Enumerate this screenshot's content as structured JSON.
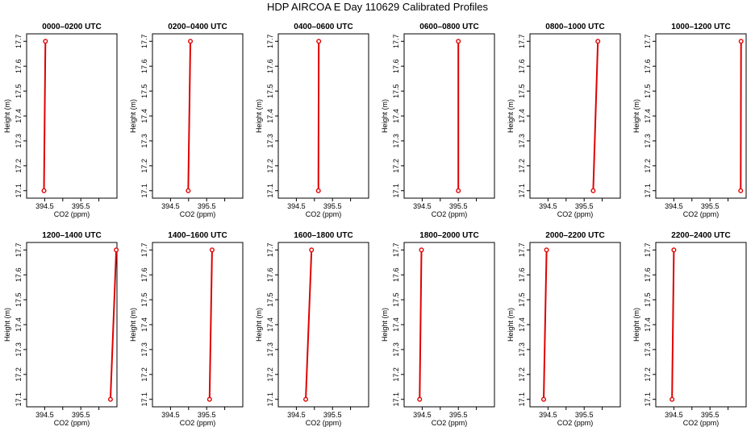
{
  "chart_data": {
    "type": "line",
    "title": "HDP AIRCOA E  Day 110629  Calibrated Profiles",
    "xlabel": "CO2 (ppm)",
    "ylabel": "Height (m)",
    "xlim": [
      394.0,
      396.5
    ],
    "ylim": [
      17.07,
      17.73
    ],
    "xticks": [
      {
        "value": 394.5,
        "label": "394.5"
      },
      {
        "value": 395.0,
        "label": ""
      },
      {
        "value": 395.5,
        "label": "395.5"
      },
      {
        "value": 396.0,
        "label": ""
      }
    ],
    "yticks": [
      {
        "value": 17.1,
        "label": "17.1"
      },
      {
        "value": 17.2,
        "label": "17.2"
      },
      {
        "value": 17.3,
        "label": "17.3"
      },
      {
        "value": 17.4,
        "label": "17.4"
      },
      {
        "value": 17.5,
        "label": "17.5"
      },
      {
        "value": 17.6,
        "label": "17.6"
      },
      {
        "value": 17.7,
        "label": "17.7"
      }
    ],
    "line_color": "#e00000",
    "panels": [
      {
        "title": "0000–0200 UTC",
        "points": [
          {
            "x": 394.48,
            "y": 17.1
          },
          {
            "x": 394.52,
            "y": 17.7
          }
        ]
      },
      {
        "title": "0200–0400 UTC",
        "points": [
          {
            "x": 394.99,
            "y": 17.1
          },
          {
            "x": 395.05,
            "y": 17.7
          }
        ]
      },
      {
        "title": "0400–0600 UTC",
        "points": [
          {
            "x": 395.11,
            "y": 17.1
          },
          {
            "x": 395.12,
            "y": 17.7
          }
        ]
      },
      {
        "title": "0600–0800 UTC",
        "points": [
          {
            "x": 395.5,
            "y": 17.1
          },
          {
            "x": 395.5,
            "y": 17.7
          }
        ]
      },
      {
        "title": "0800–1000 UTC",
        "points": [
          {
            "x": 395.75,
            "y": 17.1
          },
          {
            "x": 395.88,
            "y": 17.7
          }
        ]
      },
      {
        "title": "1000–1200 UTC",
        "points": [
          {
            "x": 396.35,
            "y": 17.1
          },
          {
            "x": 396.36,
            "y": 17.7
          }
        ]
      },
      {
        "title": "1200–1400 UTC",
        "points": [
          {
            "x": 396.32,
            "y": 17.1
          },
          {
            "x": 396.48,
            "y": 17.7
          }
        ]
      },
      {
        "title": "1400–1600 UTC",
        "points": [
          {
            "x": 395.58,
            "y": 17.1
          },
          {
            "x": 395.65,
            "y": 17.7
          }
        ]
      },
      {
        "title": "1600–1800 UTC",
        "points": [
          {
            "x": 394.76,
            "y": 17.1
          },
          {
            "x": 394.92,
            "y": 17.7
          }
        ]
      },
      {
        "title": "1800–2000 UTC",
        "points": [
          {
            "x": 394.43,
            "y": 17.1
          },
          {
            "x": 394.48,
            "y": 17.7
          }
        ]
      },
      {
        "title": "2000–2200 UTC",
        "points": [
          {
            "x": 394.38,
            "y": 17.1
          },
          {
            "x": 394.46,
            "y": 17.7
          }
        ]
      },
      {
        "title": "2200–2400 UTC",
        "points": [
          {
            "x": 394.45,
            "y": 17.1
          },
          {
            "x": 394.5,
            "y": 17.7
          }
        ]
      }
    ]
  }
}
